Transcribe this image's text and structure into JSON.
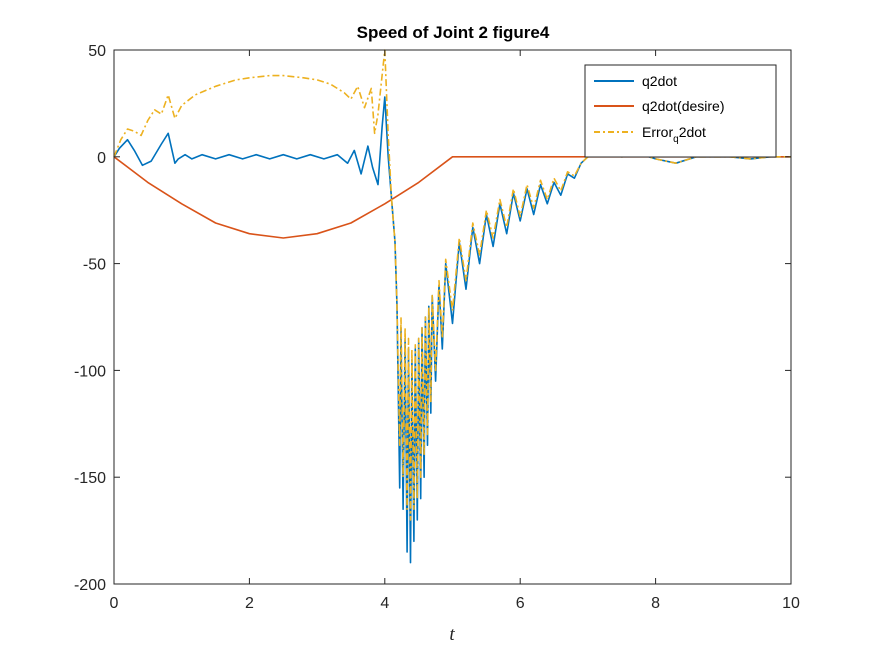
{
  "chart_data": {
    "type": "line",
    "title": "Speed of Joint 2 figure4",
    "xlabel": "t",
    "ylabel": "",
    "xlim": [
      0,
      10
    ],
    "ylim": [
      -200,
      50
    ],
    "xticks": [
      0,
      2,
      4,
      6,
      8,
      10
    ],
    "yticks": [
      50,
      0,
      -50,
      -100,
      -150,
      -200
    ],
    "grid": false,
    "legend_position": "top-right",
    "legend": {
      "q2dot": "q2dot",
      "desired": "q2dot(desire)",
      "error_prefix": "Error",
      "error_sub": "q",
      "error_suffix": "2dot"
    },
    "series": [
      {
        "name": "q2dot",
        "color": "#0072BD",
        "style": "solid",
        "x": [
          0,
          0.08,
          0.2,
          0.3,
          0.42,
          0.55,
          0.7,
          0.8,
          0.9,
          0.95,
          1.05,
          1.15,
          1.3,
          1.5,
          1.7,
          1.9,
          2.1,
          2.3,
          2.5,
          2.7,
          2.9,
          3.1,
          3.3,
          3.45,
          3.55,
          3.65,
          3.75,
          3.82,
          3.9,
          3.96,
          4.0,
          4.05,
          4.1,
          4.15,
          4.18,
          4.22,
          4.24,
          4.27,
          4.3,
          4.33,
          4.35,
          4.38,
          4.4,
          4.43,
          4.45,
          4.48,
          4.5,
          4.53,
          4.55,
          4.58,
          4.6,
          4.63,
          4.65,
          4.68,
          4.7,
          4.75,
          4.8,
          4.85,
          4.9,
          5.0,
          5.1,
          5.2,
          5.3,
          5.4,
          5.5,
          5.6,
          5.7,
          5.8,
          5.9,
          6.0,
          6.1,
          6.2,
          6.3,
          6.4,
          6.5,
          6.6,
          6.7,
          6.8,
          6.9,
          7.0,
          7.2,
          7.5,
          7.8,
          8.0,
          8.3,
          8.6,
          8.9,
          9.1,
          9.4,
          9.7,
          10.0
        ],
        "y": [
          0,
          4,
          8,
          3,
          -4,
          -2,
          6,
          11,
          -3,
          -1,
          1,
          -1,
          1,
          -1,
          1,
          -1,
          1,
          -1,
          1,
          -1,
          1,
          -1,
          1,
          -3,
          3,
          -8,
          5,
          -5,
          -13,
          14,
          28,
          0,
          -20,
          -40,
          -70,
          -155,
          -80,
          -165,
          -85,
          -185,
          -90,
          -190,
          -95,
          -180,
          -90,
          -170,
          -85,
          -160,
          -80,
          -150,
          -75,
          -135,
          -70,
          -120,
          -65,
          -105,
          -60,
          -90,
          -50,
          -78,
          -40,
          -62,
          -33,
          -50,
          -27,
          -42,
          -22,
          -36,
          -17,
          -30,
          -15,
          -27,
          -13,
          -22,
          -12,
          -18,
          -8,
          -10,
          -3,
          0,
          1,
          0,
          1,
          -1,
          -3,
          0,
          0,
          0,
          -1,
          0,
          0
        ]
      },
      {
        "name": "q2dot(desire)",
        "color": "#D95319",
        "style": "solid",
        "x": [
          0,
          0.5,
          1.0,
          1.5,
          2.0,
          2.5,
          3.0,
          3.5,
          4.0,
          4.5,
          5.0,
          6.0,
          7.0,
          8.0,
          9.0,
          10.0
        ],
        "y": [
          0,
          -12,
          -22,
          -31,
          -36,
          -38,
          -36,
          -31,
          -22,
          -12,
          0,
          0,
          0,
          0,
          0,
          0
        ]
      },
      {
        "name": "Error_q2dot",
        "color": "#EDB120",
        "style": "dashdot",
        "x": [
          0,
          0.1,
          0.2,
          0.3,
          0.4,
          0.5,
          0.6,
          0.7,
          0.8,
          0.9,
          1.0,
          1.2,
          1.5,
          1.8,
          2.0,
          2.3,
          2.5,
          2.8,
          3.0,
          3.2,
          3.4,
          3.5,
          3.6,
          3.7,
          3.8,
          3.85,
          3.9,
          3.95,
          4.0,
          4.05,
          4.1,
          4.15,
          4.18,
          4.22,
          4.24,
          4.27,
          4.3,
          4.33,
          4.35,
          4.38,
          4.4,
          4.43,
          4.45,
          4.48,
          4.5,
          4.53,
          4.55,
          4.58,
          4.6,
          4.63,
          4.65,
          4.68,
          4.7,
          4.75,
          4.8,
          4.85,
          4.9,
          5.0,
          5.1,
          5.2,
          5.3,
          5.4,
          5.5,
          5.6,
          5.7,
          5.8,
          5.9,
          6.0,
          6.1,
          6.2,
          6.3,
          6.4,
          6.5,
          6.6,
          6.7,
          6.8,
          6.9,
          7.0,
          7.2,
          7.5,
          7.8,
          8.0,
          8.3,
          8.6,
          8.9,
          9.1,
          9.4,
          9.7,
          10.0
        ],
        "y": [
          0,
          8,
          13,
          12,
          10,
          17,
          22,
          20,
          29,
          18,
          24,
          29,
          33,
          36,
          37,
          38,
          38,
          37,
          36,
          34,
          30,
          27,
          33,
          23,
          32,
          11,
          20,
          35,
          50,
          10,
          -20,
          -40,
          -70,
          -135,
          -75,
          -150,
          -80,
          -165,
          -85,
          -170,
          -90,
          -165,
          -88,
          -160,
          -85,
          -150,
          -80,
          -140,
          -75,
          -130,
          -70,
          -115,
          -65,
          -100,
          -58,
          -85,
          -48,
          -72,
          -38,
          -58,
          -31,
          -46,
          -25,
          -38,
          -20,
          -33,
          -15,
          -28,
          -13,
          -24,
          -11,
          -20,
          -10,
          -16,
          -7,
          -9,
          -3,
          0,
          1,
          0,
          1,
          -1,
          -3,
          0,
          0,
          0,
          -1,
          0,
          0
        ]
      }
    ]
  }
}
